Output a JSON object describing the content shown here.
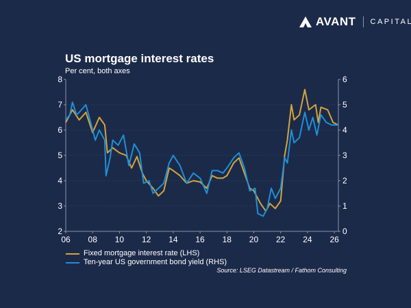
{
  "logo": {
    "brand": "AVANT",
    "suffix": "CAPITAL"
  },
  "colors": {
    "background": "#1c2a4a",
    "mortgage": "#d4a53c",
    "bond": "#1e90d6"
  },
  "chart_data": {
    "type": "line",
    "title": "US mortgage interest rates",
    "subtitle": "Per cent, both axes",
    "x_range": [
      2006,
      2026.3
    ],
    "x_ticks": [
      {
        "v": 2006,
        "label": "06"
      },
      {
        "v": 2008,
        "label": "08"
      },
      {
        "v": 2010,
        "label": "10"
      },
      {
        "v": 2012,
        "label": "12"
      },
      {
        "v": 2014,
        "label": "14"
      },
      {
        "v": 2016,
        "label": "16"
      },
      {
        "v": 2018,
        "label": "18"
      },
      {
        "v": 2020,
        "label": "20"
      },
      {
        "v": 2022,
        "label": "22"
      },
      {
        "v": 2024,
        "label": "24"
      },
      {
        "v": 2026,
        "label": "26"
      }
    ],
    "ylim_left": [
      2,
      8
    ],
    "y_ticks_left": [
      "2",
      "3",
      "4",
      "5",
      "6",
      "7",
      "8"
    ],
    "ylim_right": [
      0,
      6
    ],
    "y_ticks_right": [
      "0",
      "1",
      "2",
      "3",
      "4",
      "5",
      "6"
    ],
    "grid": true,
    "legend_position": "bottom-left",
    "series": [
      {
        "name": "Fixed mortgage interest rate (LHS)",
        "axis": "left",
        "x": [
          2006.0,
          2006.5,
          2007.0,
          2007.5,
          2008.0,
          2008.5,
          2008.9,
          2009.1,
          2009.5,
          2010.0,
          2010.5,
          2010.9,
          2011.3,
          2011.7,
          2012.0,
          2012.5,
          2012.9,
          2013.3,
          2013.7,
          2014.0,
          2014.5,
          2015.0,
          2015.5,
          2016.0,
          2016.5,
          2016.9,
          2017.3,
          2017.7,
          2018.0,
          2018.5,
          2018.9,
          2019.3,
          2019.7,
          2020.0,
          2020.5,
          2020.9,
          2021.2,
          2021.6,
          2022.0,
          2022.3,
          2022.5,
          2022.8,
          2023.0,
          2023.4,
          2023.8,
          2024.1,
          2024.6,
          2024.8,
          2025.0,
          2025.5,
          2025.9,
          2026.3
        ],
        "y": [
          6.3,
          6.8,
          6.4,
          6.7,
          5.9,
          6.5,
          6.2,
          5.1,
          5.3,
          5.1,
          5.0,
          4.5,
          4.95,
          4.3,
          4.0,
          3.7,
          3.4,
          3.6,
          4.5,
          4.4,
          4.2,
          3.9,
          4.0,
          3.95,
          3.7,
          4.2,
          4.1,
          4.1,
          4.2,
          4.7,
          4.9,
          4.3,
          3.7,
          3.6,
          3.1,
          2.8,
          3.1,
          2.9,
          3.2,
          5.0,
          5.6,
          7.0,
          6.4,
          6.6,
          7.6,
          6.8,
          7.0,
          6.3,
          6.9,
          6.8,
          6.3,
          6.2
        ]
      },
      {
        "name": "Ten-year US government bond yield (RHS)",
        "axis": "right",
        "x": [
          2006.0,
          2006.3,
          2006.5,
          2006.8,
          2007.0,
          2007.5,
          2007.9,
          2008.2,
          2008.5,
          2008.9,
          2009.0,
          2009.3,
          2009.5,
          2009.9,
          2010.3,
          2010.7,
          2011.1,
          2011.5,
          2011.8,
          2012.2,
          2012.5,
          2012.9,
          2013.3,
          2013.7,
          2014.0,
          2014.5,
          2015.0,
          2015.5,
          2016.0,
          2016.5,
          2016.9,
          2017.3,
          2017.7,
          2018.0,
          2018.5,
          2018.9,
          2019.3,
          2019.7,
          2020.1,
          2020.3,
          2020.7,
          2021.0,
          2021.3,
          2021.6,
          2022.0,
          2022.3,
          2022.5,
          2022.8,
          2023.0,
          2023.4,
          2023.8,
          2024.1,
          2024.4,
          2024.7,
          2025.0,
          2025.4,
          2025.8,
          2026.3
        ],
        "y": [
          4.4,
          4.6,
          5.1,
          4.6,
          4.7,
          5.0,
          4.2,
          3.6,
          4.0,
          3.6,
          2.2,
          2.9,
          3.6,
          3.4,
          3.8,
          2.6,
          3.45,
          3.1,
          1.9,
          2.0,
          1.5,
          1.7,
          1.9,
          2.7,
          3.0,
          2.6,
          1.9,
          2.3,
          2.1,
          1.5,
          2.4,
          2.4,
          2.3,
          2.5,
          2.9,
          3.1,
          2.5,
          1.6,
          1.7,
          0.7,
          0.6,
          0.9,
          1.7,
          1.3,
          1.7,
          2.9,
          2.7,
          4.0,
          3.5,
          3.7,
          4.7,
          4.0,
          4.5,
          3.8,
          4.6,
          4.3,
          4.2,
          4.2
        ]
      }
    ],
    "source": "Source: LSEG Datastream / Fathom Consulting"
  }
}
